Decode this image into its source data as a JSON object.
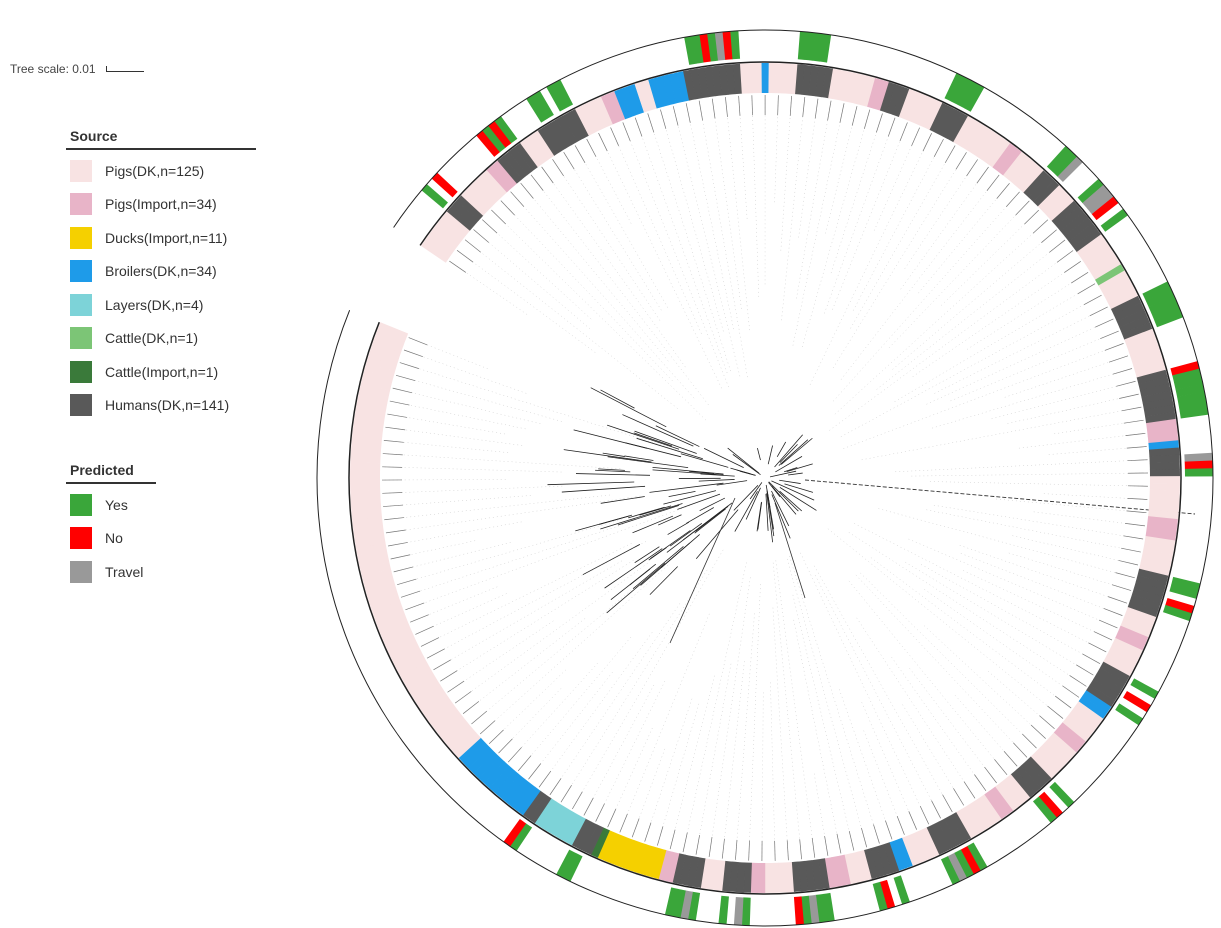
{
  "tree_scale": {
    "label": "Tree scale: 0.01"
  },
  "legend_source": {
    "title": "Source",
    "items": [
      {
        "label": "Pigs(DK,n=125)",
        "color": "#f8e3e3"
      },
      {
        "label": "Pigs(Import,n=34)",
        "color": "#e8b4c8"
      },
      {
        "label": "Ducks(Import,n=11)",
        "color": "#f5d000"
      },
      {
        "label": "Broilers(DK,n=34)",
        "color": "#1e9be9"
      },
      {
        "label": "Layers(DK,n=4)",
        "color": "#7dd3d8"
      },
      {
        "label": "Cattle(DK,n=1)",
        "color": "#7cc576"
      },
      {
        "label": "Cattle(Import,n=1)",
        "color": "#3a7a3a"
      },
      {
        "label": "Humans(DK,n=141)",
        "color": "#595959"
      }
    ]
  },
  "legend_predicted": {
    "title": "Predicted",
    "items": [
      {
        "label": "Yes",
        "color": "#3aa63a"
      },
      {
        "label": "No",
        "color": "#ff0000"
      },
      {
        "label": "Travel",
        "color": "#999999"
      }
    ]
  }
}
